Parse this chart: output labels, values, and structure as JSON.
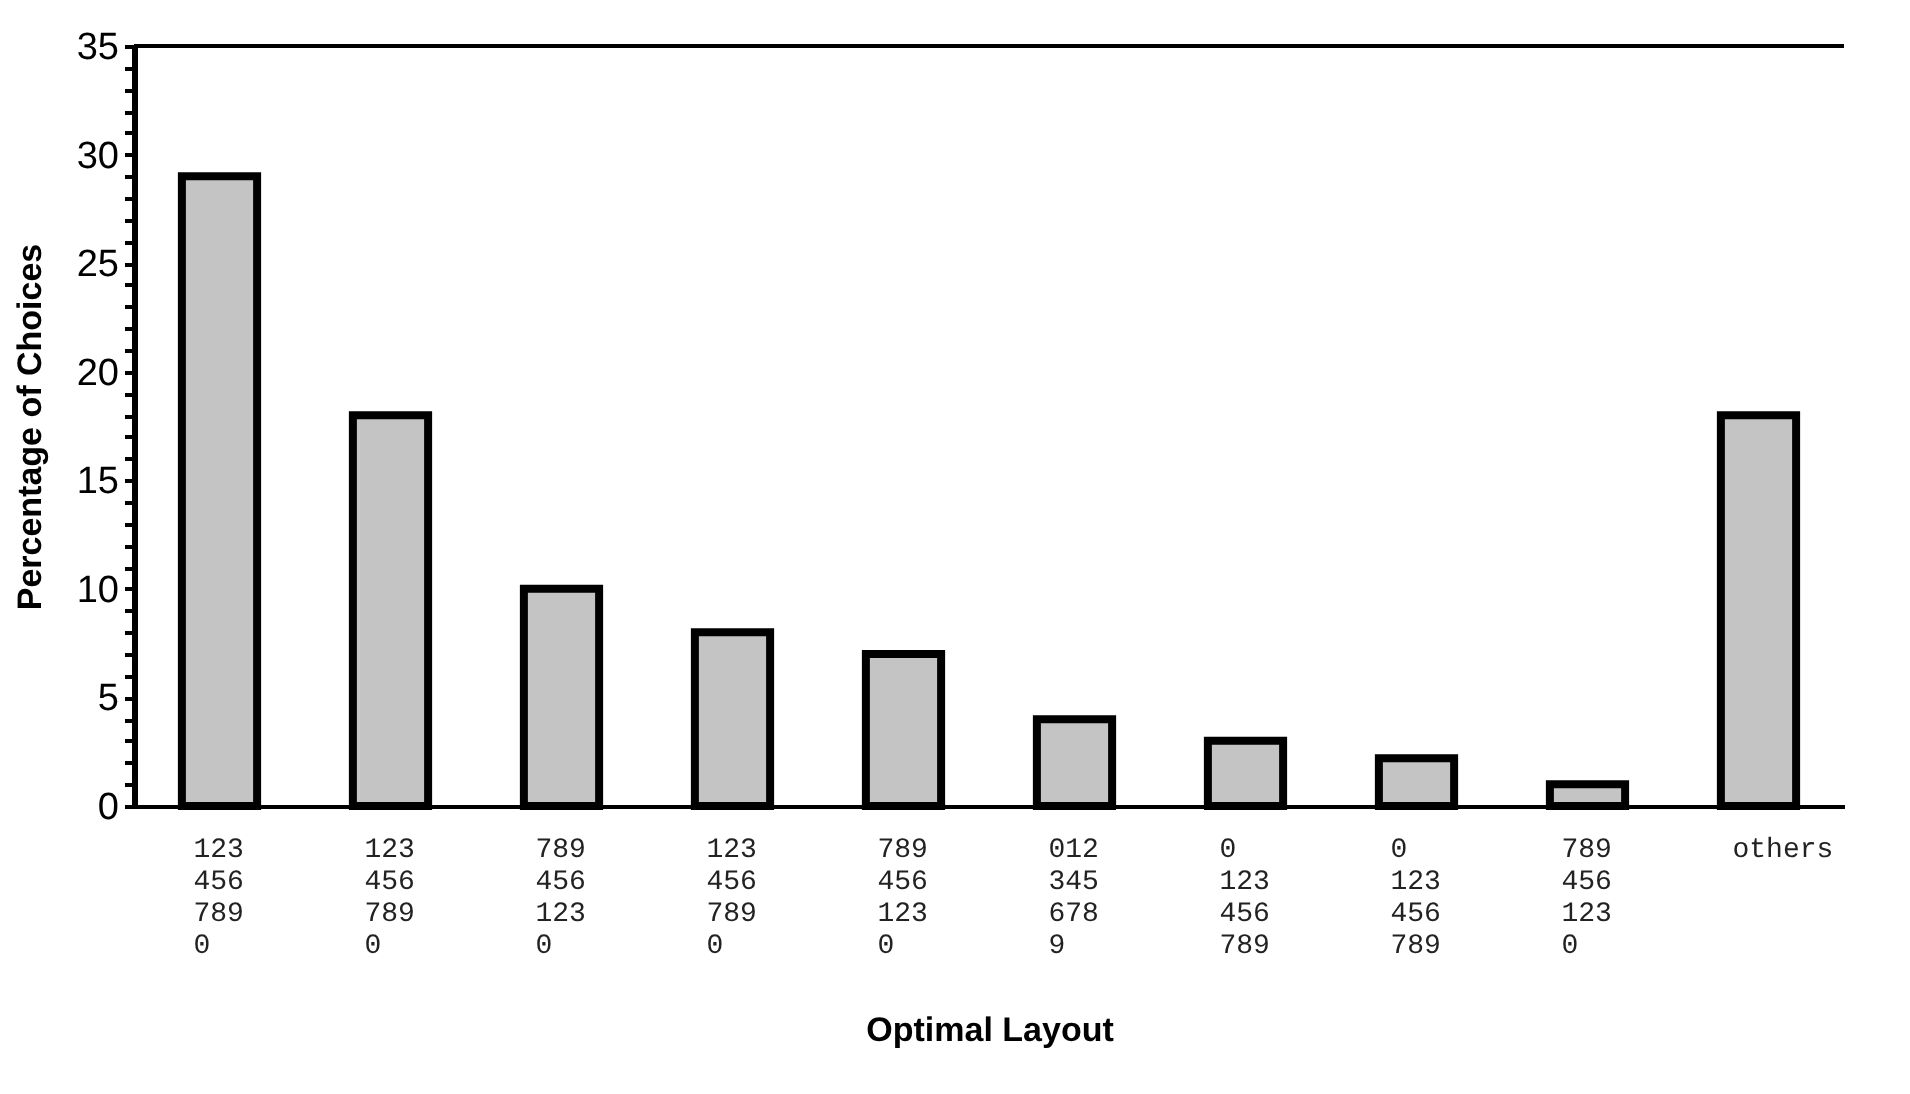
{
  "chart_data": {
    "type": "bar",
    "xlabel": "Optimal Layout",
    "ylabel": "Percentage of Choices",
    "categories": [
      "123\n456\n789\n 0",
      "123\n456\n789\n0",
      "789\n456\n123\n0",
      "123\n456\n789\n  0",
      "789\n456\n123\n 0",
      "012\n345\n678\n9",
      " 0\n123\n456\n789",
      " 0\n123\n456\n789",
      "789\n456\n123\n  0",
      "others"
    ],
    "values": [
      29,
      18,
      10,
      8,
      7,
      4,
      3,
      2.2,
      1,
      18
    ],
    "color": "#c4c4c4",
    "ylim": [
      0,
      35
    ],
    "yticks": [
      0,
      {
        "value": 1,
        "label": null
      },
      {
        "value": 2,
        "label": null
      },
      {
        "value": 3,
        "label": null
      },
      {
        "value": 4,
        "label": null
      },
      5,
      {
        "value": 6,
        "label": null
      },
      {
        "value": 7,
        "label": null
      },
      {
        "value": 8,
        "label": null
      },
      {
        "value": 9,
        "label": null
      },
      10,
      {
        "value": 11,
        "label": null
      },
      {
        "value": 12,
        "label": null
      },
      {
        "value": 13,
        "label": null
      },
      {
        "value": 14,
        "label": null
      },
      15,
      {
        "value": 16,
        "label": null
      },
      {
        "value": 17,
        "label": null
      },
      {
        "value": 18,
        "label": null
      },
      {
        "value": 19,
        "label": null
      },
      20,
      {
        "value": 21,
        "label": null
      },
      {
        "value": 22,
        "label": null
      },
      {
        "value": 23,
        "label": null
      },
      {
        "value": 24,
        "label": null
      },
      25,
      {
        "value": 26,
        "label": null
      },
      {
        "value": 27,
        "label": null
      },
      {
        "value": 28,
        "label": null
      },
      {
        "value": 29,
        "label": null
      },
      30,
      {
        "value": 31,
        "label": null
      },
      {
        "value": 32,
        "label": null
      },
      {
        "value": 33,
        "label": null
      },
      {
        "value": 34,
        "label": null
      },
      35
    ],
    "grid": false
  }
}
